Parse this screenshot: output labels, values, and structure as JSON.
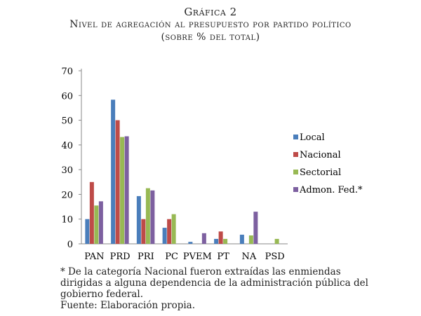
{
  "chart_data": {
    "type": "bar",
    "title": "Gráfica 2",
    "subtitle": "Nivel de agregación al presupuesto por partido político",
    "subtitle2": "(sobre % del total)",
    "categories": [
      "PAN",
      "PRD",
      "PRI",
      "PC",
      "PVEM",
      "PT",
      "NA",
      "PSD"
    ],
    "series": [
      {
        "name": "Local",
        "color": "#4a7ebb",
        "values": [
          10,
          58.3,
          19.3,
          6.5,
          0.8,
          2,
          3.7,
          0
        ]
      },
      {
        "name": "Nacional",
        "color": "#be4b48",
        "values": [
          25,
          50,
          10,
          10,
          0,
          5,
          0,
          0
        ]
      },
      {
        "name": "Sectorial",
        "color": "#98b954",
        "values": [
          15.5,
          43.2,
          22.5,
          12,
          0,
          2,
          3.4,
          2
        ]
      },
      {
        "name": "Admon. Fed.*",
        "color": "#7d60a0",
        "values": [
          17.2,
          43.5,
          21.6,
          0,
          4.3,
          0,
          13,
          0
        ]
      }
    ],
    "ylim": [
      0,
      70
    ],
    "yticks": [
      0,
      10,
      20,
      30,
      40,
      50,
      60,
      70
    ],
    "legend": "right"
  },
  "notes": {
    "footnote": "* De la categoría Nacional fueron extraídas las enmiendas dirigidas a alguna dependencia de la administración pública del gobierno federal.",
    "source": "Fuente: Elaboración propia."
  }
}
